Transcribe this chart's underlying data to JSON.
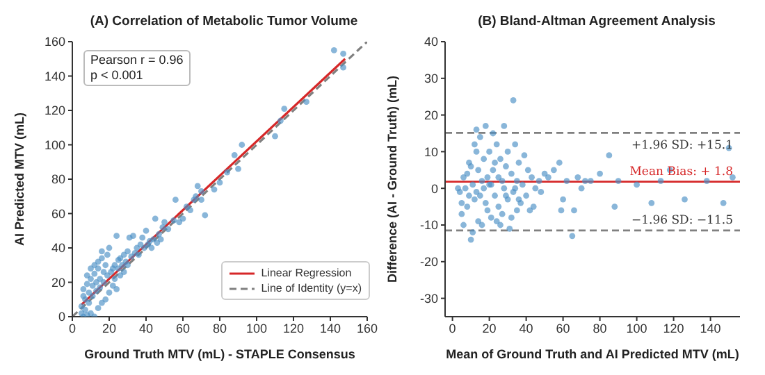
{
  "chart_data": [
    {
      "type": "scatter",
      "title": "(A) Correlation of Metabolic Tumor Volume",
      "xlabel": "Ground Truth MTV (mL) - STAPLE Consensus",
      "ylabel": "AI Predicted MTV (mL)",
      "xlim": [
        0,
        160
      ],
      "xticks": [
        0,
        20,
        40,
        60,
        80,
        100,
        120,
        140,
        160
      ],
      "ylim": [
        0,
        160
      ],
      "yticks": [
        0,
        20,
        40,
        60,
        80,
        100,
        120,
        140,
        160
      ],
      "legend": "bottom right",
      "annotations": [
        "Pearson r = 0.96",
        "p < 0.001"
      ],
      "series": [
        {
          "marker": "circle",
          "color": "#4a8fc4",
          "x": [
            142,
            147,
            147,
            127,
            115,
            113,
            110,
            92,
            88,
            90,
            84,
            80,
            77,
            68,
            70,
            67,
            66,
            72,
            64,
            60,
            58,
            56,
            45,
            50,
            49,
            47,
            44,
            42,
            40,
            38,
            37,
            35,
            33,
            31,
            30,
            28,
            26,
            25,
            24,
            23,
            22,
            20,
            19,
            18,
            17,
            16,
            15,
            14,
            13,
            12,
            11,
            10,
            9,
            8,
            7,
            6,
            5,
            5,
            6,
            8,
            10,
            12,
            9,
            11,
            13,
            15,
            17,
            19,
            21,
            23,
            25,
            27,
            29,
            32,
            34,
            36,
            39,
            41,
            43,
            46,
            48,
            52,
            55,
            20,
            18,
            14,
            16,
            22,
            24,
            26,
            28,
            30,
            7,
            6,
            8,
            10,
            12,
            14,
            16,
            62,
            70
          ],
          "values": [
            155,
            153,
            145,
            125,
            121,
            114,
            105,
            100,
            94,
            86,
            84,
            78,
            74,
            76,
            73,
            70,
            68,
            59,
            62,
            57,
            55,
            68,
            57,
            55,
            52,
            48,
            45,
            44,
            50,
            46,
            42,
            40,
            47,
            46,
            38,
            36,
            34,
            33,
            47,
            30,
            28,
            40,
            36,
            30,
            26,
            34,
            22,
            28,
            20,
            25,
            18,
            22,
            14,
            19,
            10,
            12,
            6,
            2,
            0,
            1,
            2,
            0,
            8,
            12,
            15,
            17,
            20,
            24,
            26,
            22,
            28,
            30,
            32,
            35,
            37,
            36,
            40,
            42,
            40,
            43,
            45,
            51,
            56,
            14,
            10,
            5,
            8,
            18,
            16,
            24,
            26,
            30,
            4,
            16,
            24,
            28,
            30,
            32,
            38,
            64,
            68
          ]
        },
        {
          "type": "line",
          "name": "Linear Regression",
          "color": "#d62728",
          "marker": "none",
          "x": [
            5,
            148
          ],
          "values": [
            7,
            150
          ]
        },
        {
          "type": "line",
          "name": "Line of Identity (y=x)",
          "color": "#808080",
          "line_style": "dashed",
          "marker": "none",
          "x": [
            0,
            160
          ],
          "values": [
            0,
            160
          ]
        }
      ]
    },
    {
      "type": "scatter",
      "title": "(B) Bland-Altman Agreement Analysis",
      "xlabel": "Mean of Ground Truth and AI Predicted MTV (mL)",
      "ylabel": "Difference (AI - Ground Truth) (mL)",
      "xlim": [
        -4,
        156
      ],
      "xticks": [
        0,
        20,
        40,
        60,
        80,
        100,
        120,
        140
      ],
      "ylim": [
        -35,
        40
      ],
      "yticks": [
        -30,
        -20,
        -10,
        0,
        10,
        20,
        30,
        40
      ],
      "marker": "circle",
      "ref_lines": [
        {
          "axis": "y",
          "value": 15.1,
          "label": "+1.96 SD: +15.1",
          "color": "#808080",
          "line_style": "dashed"
        },
        {
          "axis": "y",
          "value": 1.8,
          "label": "Mean Bias: + 1.8",
          "color": "#d62728",
          "line_style": "solid"
        },
        {
          "axis": "y",
          "value": -11.5,
          "label": "−1.96 SD: −11.5",
          "color": "#808080",
          "line_style": "dashed"
        }
      ],
      "series": [
        {
          "color": "#4a8fc4",
          "x": [
            5,
            5,
            6,
            7,
            8,
            9,
            10,
            10,
            11,
            12,
            12,
            13,
            14,
            14,
            15,
            16,
            16,
            17,
            18,
            18,
            19,
            20,
            20,
            21,
            22,
            22,
            23,
            24,
            25,
            25,
            26,
            27,
            28,
            28,
            29,
            30,
            30,
            31,
            32,
            33,
            33,
            34,
            35,
            35,
            36,
            37,
            38,
            40,
            41,
            42,
            43,
            44,
            45,
            47,
            48,
            50,
            52,
            55,
            58,
            59,
            60,
            62,
            65,
            66,
            68,
            70,
            72,
            75,
            80,
            85,
            88,
            90,
            100,
            108,
            113,
            118,
            126,
            138,
            147,
            150,
            152,
            3,
            4,
            6,
            8,
            11,
            13,
            15,
            17,
            19,
            21,
            23,
            24,
            26,
            27,
            29,
            32,
            34,
            36,
            39,
            13,
            9
          ],
          "values": [
            -4,
            -7,
            -10,
            0,
            4,
            -2,
            6,
            -14,
            -12,
            12,
            -3,
            16,
            -9,
            5,
            14,
            -10,
            2,
            8,
            17,
            -4,
            -6,
            10,
            1,
            -8,
            15,
            5,
            -2,
            12,
            -5,
            3,
            8,
            -7,
            17,
            0,
            6,
            -3,
            10,
            -11,
            4,
            24,
            -1,
            12,
            -6,
            2,
            7,
            -4,
            1,
            -2,
            5,
            -6,
            3,
            -5,
            0,
            2,
            -1,
            4,
            3,
            5,
            7,
            -6,
            -3,
            2,
            -13,
            -6,
            3,
            0,
            2,
            2,
            4,
            9,
            -5,
            2,
            1,
            -4,
            2,
            5,
            -3,
            2,
            -4,
            11,
            3,
            0,
            -1,
            3,
            -5,
            1,
            -1,
            -2,
            0,
            3,
            1,
            7,
            -9,
            -10,
            2,
            -2,
            -8,
            0,
            -3,
            9,
            10,
            7
          ]
        }
      ]
    }
  ]
}
